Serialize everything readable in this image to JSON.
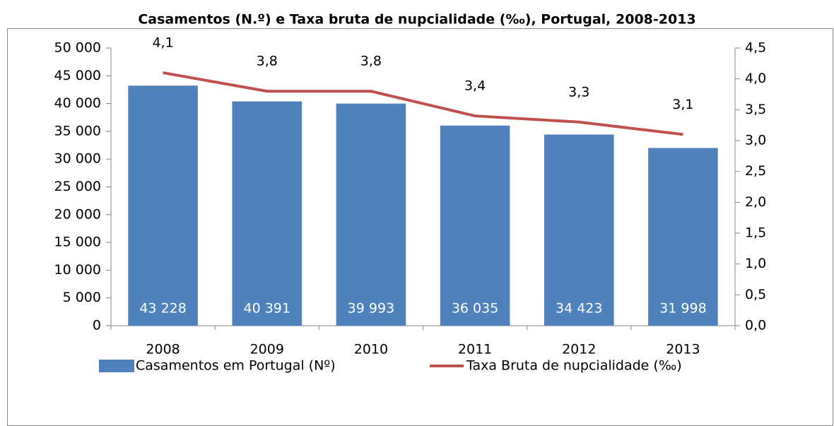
{
  "chart_data": {
    "type": "bar",
    "title": "Casamentos (N.º) e Taxa bruta de nupcialidade (‰), Portugal, 2008-2013",
    "categories": [
      "2008",
      "2009",
      "2010",
      "2011",
      "2012",
      "2013"
    ],
    "series": [
      {
        "name": "Casamentos em Portugal (Nº)",
        "type": "bar",
        "color": "#4f81bd",
        "values": [
          43228,
          40391,
          39993,
          36035,
          34423,
          31998
        ],
        "value_labels": [
          "43 228",
          "40 391",
          "39 993",
          "36 035",
          "34 423",
          "31 998"
        ]
      },
      {
        "name": "Taxa Bruta de nupcialidade (‰)",
        "type": "line",
        "axis": "y2",
        "color": "#c0504d",
        "values": [
          4.1,
          3.8,
          3.8,
          3.4,
          3.3,
          3.1
        ],
        "value_labels": [
          "4,1",
          "3,8",
          "3,8",
          "3,4",
          "3,3",
          "3,1"
        ]
      }
    ],
    "ylim": [
      0,
      50000
    ],
    "yticks": [
      0,
      {
        "value": 5000,
        "label": "5 000"
      },
      {
        "value": 10000,
        "label": "10 000"
      },
      {
        "value": 15000,
        "label": "15 000"
      },
      {
        "value": 20000,
        "label": "20 000"
      },
      {
        "value": 25000,
        "label": "25 000"
      },
      {
        "value": 30000,
        "label": "30 000"
      },
      {
        "value": 35000,
        "label": "35 000"
      },
      {
        "value": 40000,
        "label": "40 000"
      },
      {
        "value": 45000,
        "label": "45 000"
      },
      {
        "value": 50000,
        "label": "50 000"
      }
    ],
    "y2lim": [
      0,
      4.5
    ],
    "y2ticks": [
      {
        "value": 0,
        "label": "0,0"
      },
      {
        "value": 0.5,
        "label": "0,5"
      },
      {
        "value": 1,
        "label": "1,0"
      },
      {
        "value": 1.5,
        "label": "1,5"
      },
      {
        "value": 2,
        "label": "2,0"
      },
      {
        "value": 2.5,
        "label": "2,5"
      },
      {
        "value": 3,
        "label": "3,0"
      },
      {
        "value": 3.5,
        "label": "3,5"
      },
      {
        "value": 4,
        "label": "4,0"
      },
      {
        "value": 4.5,
        "label": "4,5"
      }
    ],
    "legend": "bottom"
  }
}
